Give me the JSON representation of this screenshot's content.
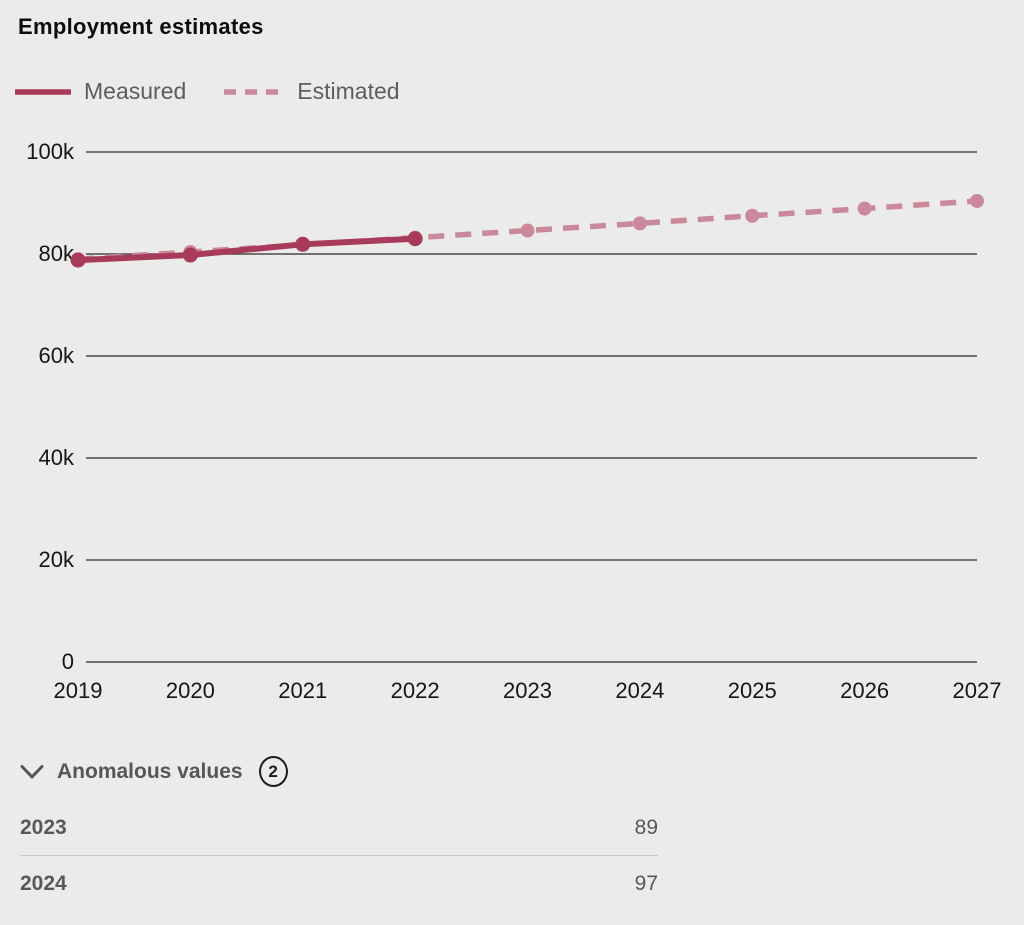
{
  "title": "Employment estimates",
  "legend": {
    "measured": "Measured",
    "estimated": "Estimated"
  },
  "colors": {
    "background": "#ebebeb",
    "measured": "#a83a5a",
    "estimated": "#ca899a",
    "grid": "#4a4a4a",
    "tick_text": "#161616",
    "muted_text": "#57585a"
  },
  "chart_data": {
    "type": "line",
    "title": "Employment estimates",
    "x": [
      "2019",
      "2020",
      "2021",
      "2022",
      "2023",
      "2024",
      "2025",
      "2026",
      "2027"
    ],
    "series": [
      {
        "name": "Measured",
        "style": "solid",
        "color": "#a83a5a",
        "values": [
          78800,
          79800,
          81900,
          83000,
          null,
          null,
          null,
          null,
          null
        ]
      },
      {
        "name": "Estimated",
        "style": "dashed",
        "color": "#ca899a",
        "values": [
          79000,
          80400,
          81800,
          83200,
          84600,
          86000,
          87500,
          88900,
          90400
        ]
      }
    ],
    "yticks": [
      {
        "label": "100k",
        "value": 100000
      },
      {
        "label": "80k",
        "value": 80000
      },
      {
        "label": "60k",
        "value": 60000
      },
      {
        "label": "40k",
        "value": 40000
      },
      {
        "label": "20k",
        "value": 20000
      },
      {
        "label": "0",
        "value": 0
      }
    ],
    "ylim": [
      0,
      100000
    ],
    "grid": true,
    "legend_position": "top-left"
  },
  "anomalous": {
    "header": "Anomalous values",
    "count": "2",
    "rows": [
      {
        "year": "2023",
        "value": "89"
      },
      {
        "year": "2024",
        "value": "97"
      }
    ]
  }
}
